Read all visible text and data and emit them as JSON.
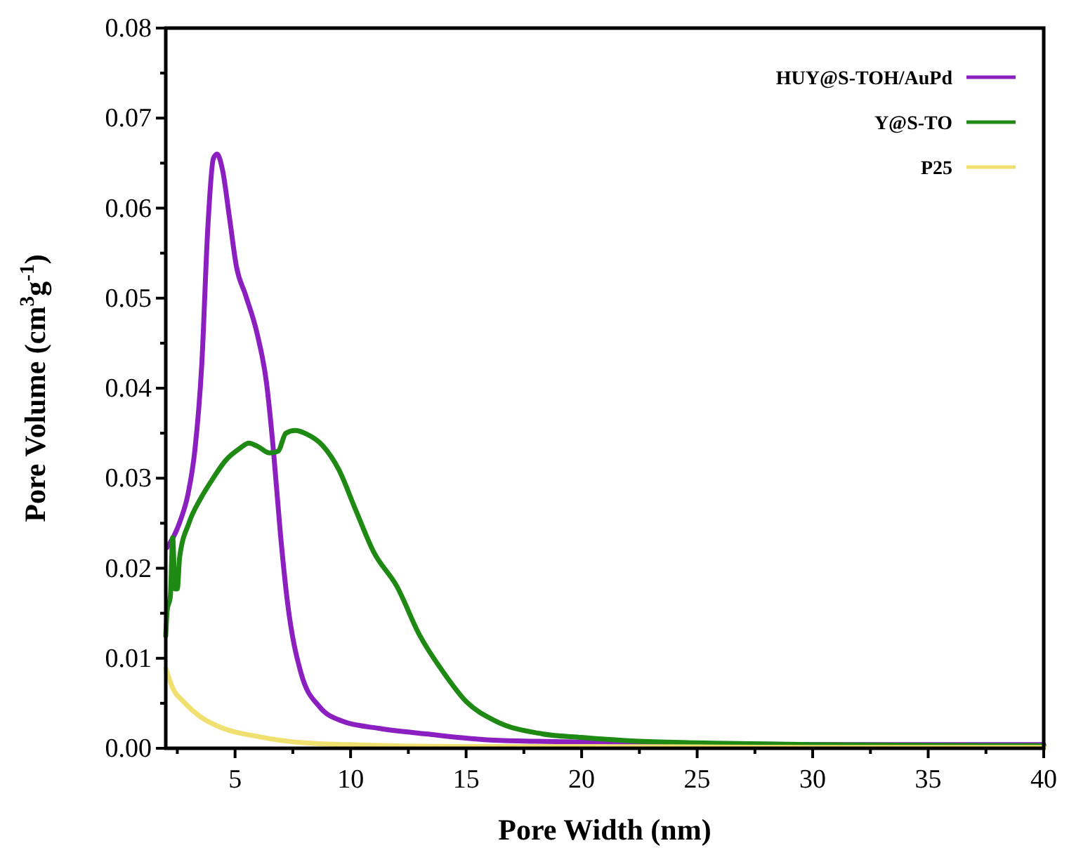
{
  "chart_data": {
    "type": "line",
    "xlabel": "Pore Width (nm)",
    "ylabel": "Pore Volume (cm$^{3}$g$^{-1}$)",
    "xlim": [
      2,
      40
    ],
    "ylim": [
      0,
      0.08
    ],
    "xticks": [
      {
        "value": 2.5,
        "label": null
      },
      5,
      {
        "value": 7.5,
        "label": null
      },
      10,
      {
        "value": 12.5,
        "label": null
      },
      15,
      {
        "value": 17.5,
        "label": null
      },
      20,
      {
        "value": 22.5,
        "label": null
      },
      25,
      {
        "value": 27.5,
        "label": null
      },
      30,
      {
        "value": 32.5,
        "label": null
      },
      35,
      {
        "value": 37.5,
        "label": null
      },
      40
    ],
    "yticks": [
      {
        "value": 0,
        "label": "0.00"
      },
      {
        "value": 0.005,
        "label": null
      },
      {
        "value": 0.01,
        "label": "0.01"
      },
      {
        "value": 0.015,
        "label": null
      },
      {
        "value": 0.02,
        "label": "0.02"
      },
      {
        "value": 0.025,
        "label": null
      },
      {
        "value": 0.03,
        "label": "0.03"
      },
      {
        "value": 0.035,
        "label": null
      },
      {
        "value": 0.04,
        "label": "0.04"
      },
      {
        "value": 0.045,
        "label": null
      },
      {
        "value": 0.05,
        "label": "0.05"
      },
      {
        "value": 0.055,
        "label": null
      },
      {
        "value": 0.06,
        "label": "0.06"
      },
      {
        "value": 0.065,
        "label": null
      },
      {
        "value": 0.07,
        "label": "0.07"
      },
      {
        "value": 0.075,
        "label": null
      },
      {
        "value": 0.08,
        "label": "0.08"
      }
    ],
    "legend": "top right",
    "marker": "none",
    "line_style": "solid",
    "grid": false,
    "series": [
      {
        "name": "HUY@S-TOH/AuPd",
        "color": "#8b1fc0",
        "x": [
          2.06,
          2.66,
          2.96,
          3.26,
          3.56,
          3.82,
          4.06,
          4.22,
          4.46,
          4.76,
          5.06,
          5.46,
          5.96,
          6.36,
          6.66,
          6.96,
          7.26,
          7.86,
          8.66,
          9.66,
          11.26,
          13.26,
          16.26,
          20,
          25,
          30,
          40
        ],
        "values": [
          0.0223,
          0.0255,
          0.0282,
          0.0331,
          0.0427,
          0.0578,
          0.0655,
          0.066,
          0.0642,
          0.0589,
          0.0535,
          0.0503,
          0.046,
          0.0406,
          0.0331,
          0.0239,
          0.0164,
          0.0083,
          0.0046,
          0.003,
          0.0022,
          0.0016,
          0.0009,
          0.0007,
          0.0005,
          0.0004,
          0.0004
        ]
      },
      {
        "name": "Y@S-TO",
        "color": "#1e8a14",
        "x": [
          2.0,
          2.06,
          2.2,
          2.3,
          2.4,
          2.5,
          2.6,
          3.0,
          3.5,
          4.0,
          4.6,
          5.2,
          5.6,
          6.0,
          6.5,
          6.86,
          7.2,
          7.6,
          8.1,
          8.8,
          9.5,
          10.2,
          11.0,
          12.0,
          13.0,
          14.0,
          15.0,
          16.3,
          18.3,
          20,
          22.3,
          25,
          30,
          40
        ],
        "values": [
          0.0125,
          0.0153,
          0.0169,
          0.0234,
          0.0177,
          0.0177,
          0.0212,
          0.025,
          0.0277,
          0.0298,
          0.032,
          0.0333,
          0.0339,
          0.0335,
          0.0328,
          0.033,
          0.035,
          0.0353,
          0.0349,
          0.0336,
          0.0309,
          0.0266,
          0.0218,
          0.018,
          0.0125,
          0.0085,
          0.0052,
          0.003,
          0.0016,
          0.0012,
          0.0008,
          0.0006,
          0.0004,
          0.0003
        ]
      },
      {
        "name": "P25",
        "color": "#f0e070",
        "x": [
          2.0,
          2.3,
          2.8,
          3.5,
          4.5,
          6,
          8,
          10,
          15,
          20,
          30,
          40
        ],
        "values": [
          0.0089,
          0.0067,
          0.0051,
          0.0035,
          0.0022,
          0.0013,
          0.0006,
          0.0004,
          0.0002,
          0.0002,
          0.0001,
          0.0001
        ]
      }
    ]
  }
}
